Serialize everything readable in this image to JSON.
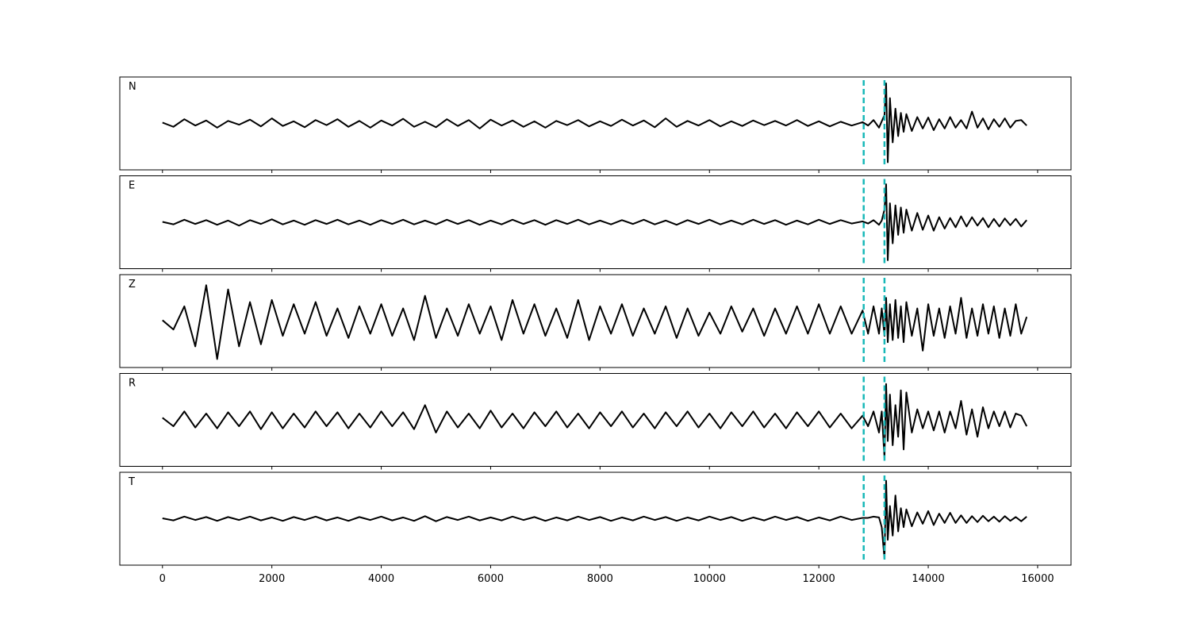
{
  "chart_data": [
    {
      "type": "line",
      "label": "N",
      "color": "#000000",
      "vline_color": "#17b8b8",
      "vlines": [
        12820,
        13200
      ],
      "xlim": [
        -780,
        16610
      ],
      "ylim": [
        -1.1,
        1.1
      ],
      "xticks": [
        0,
        2000,
        4000,
        6000,
        8000,
        10000,
        12000,
        14000,
        16000
      ],
      "x": [
        0,
        200,
        400,
        600,
        800,
        1000,
        1200,
        1400,
        1600,
        1800,
        2000,
        2200,
        2400,
        2600,
        2800,
        3000,
        3200,
        3400,
        3600,
        3800,
        4000,
        4200,
        4400,
        4600,
        4800,
        5000,
        5200,
        5400,
        5600,
        5800,
        6000,
        6200,
        6400,
        6600,
        6800,
        7000,
        7200,
        7400,
        7600,
        7800,
        8000,
        8200,
        8400,
        8600,
        8800,
        9000,
        9200,
        9400,
        9600,
        9800,
        10000,
        10200,
        10400,
        10600,
        10800,
        11000,
        11200,
        11400,
        11600,
        11800,
        12000,
        12200,
        12400,
        12600,
        12800,
        12900,
        13000,
        13100,
        13150,
        13200,
        13230,
        13260,
        13300,
        13350,
        13400,
        13450,
        13500,
        13550,
        13600,
        13700,
        13800,
        13900,
        14000,
        14100,
        14200,
        14300,
        14400,
        14500,
        14600,
        14700,
        14800,
        14900,
        15000,
        15100,
        15200,
        15300,
        15400,
        15500,
        15600,
        15700,
        15800
      ],
      "values": [
        0.02,
        -0.08,
        0.1,
        -0.05,
        0.07,
        -0.1,
        0.06,
        -0.03,
        0.09,
        -0.07,
        0.12,
        -0.06,
        0.05,
        -0.09,
        0.08,
        -0.04,
        0.1,
        -0.08,
        0.06,
        -0.1,
        0.07,
        -0.05,
        0.11,
        -0.08,
        0.04,
        -0.09,
        0.1,
        -0.06,
        0.08,
        -0.12,
        0.09,
        -0.05,
        0.07,
        -0.08,
        0.05,
        -0.1,
        0.06,
        -0.04,
        0.08,
        -0.07,
        0.05,
        -0.06,
        0.09,
        -0.05,
        0.07,
        -0.09,
        0.12,
        -0.08,
        0.06,
        -0.05,
        0.08,
        -0.07,
        0.05,
        -0.06,
        0.07,
        -0.04,
        0.06,
        -0.05,
        0.08,
        -0.06,
        0.05,
        -0.07,
        0.04,
        -0.05,
        0.03,
        -0.05,
        0.08,
        -0.1,
        0.05,
        0.2,
        0.95,
        -0.92,
        0.6,
        -0.45,
        0.35,
        -0.3,
        0.25,
        -0.2,
        0.22,
        -0.18,
        0.15,
        -0.12,
        0.14,
        -0.16,
        0.1,
        -0.12,
        0.15,
        -0.1,
        0.08,
        -0.12,
        0.28,
        -0.1,
        0.12,
        -0.14,
        0.1,
        -0.08,
        0.12,
        -0.1,
        0.06,
        0.08,
        -0.05
      ]
    },
    {
      "type": "line",
      "label": "E",
      "color": "#000000",
      "vline_color": "#17b8b8",
      "vlines": [
        12820,
        13200
      ],
      "xlim": [
        -780,
        16610
      ],
      "ylim": [
        -1.1,
        1.1
      ],
      "xticks": [
        0,
        2000,
        4000,
        6000,
        8000,
        10000,
        12000,
        14000,
        16000
      ],
      "x": [
        0,
        200,
        400,
        600,
        800,
        1000,
        1200,
        1400,
        1600,
        1800,
        2000,
        2200,
        2400,
        2600,
        2800,
        3000,
        3200,
        3400,
        3600,
        3800,
        4000,
        4200,
        4400,
        4600,
        4800,
        5000,
        5200,
        5400,
        5600,
        5800,
        6000,
        6200,
        6400,
        6600,
        6800,
        7000,
        7200,
        7400,
        7600,
        7800,
        8000,
        8200,
        8400,
        8600,
        8800,
        9000,
        9200,
        9400,
        9600,
        9800,
        10000,
        10200,
        10400,
        10600,
        10800,
        11000,
        11200,
        11400,
        11600,
        11800,
        12000,
        12200,
        12400,
        12600,
        12800,
        12900,
        13000,
        13100,
        13150,
        13200,
        13230,
        13260,
        13300,
        13350,
        13400,
        13450,
        13500,
        13550,
        13600,
        13700,
        13800,
        13900,
        14000,
        14100,
        14200,
        14300,
        14400,
        14500,
        14600,
        14700,
        14800,
        14900,
        15000,
        15100,
        15200,
        15300,
        15400,
        15500,
        15600,
        15700,
        15800
      ],
      "values": [
        0.01,
        -0.05,
        0.06,
        -0.04,
        0.05,
        -0.06,
        0.04,
        -0.08,
        0.05,
        -0.04,
        0.07,
        -0.05,
        0.04,
        -0.06,
        0.05,
        -0.04,
        0.06,
        -0.05,
        0.04,
        -0.06,
        0.05,
        -0.04,
        0.06,
        -0.05,
        0.04,
        -0.05,
        0.06,
        -0.04,
        0.05,
        -0.06,
        0.04,
        -0.05,
        0.06,
        -0.04,
        0.05,
        -0.06,
        0.05,
        -0.04,
        0.06,
        -0.05,
        0.04,
        -0.05,
        0.05,
        -0.04,
        0.06,
        -0.05,
        0.04,
        -0.06,
        0.05,
        -0.04,
        0.06,
        -0.05,
        0.04,
        -0.05,
        0.06,
        -0.04,
        0.05,
        -0.06,
        0.04,
        -0.05,
        0.06,
        -0.04,
        0.05,
        -0.03,
        0.02,
        -0.03,
        0.05,
        -0.06,
        0.04,
        0.3,
        0.9,
        -0.9,
        0.45,
        -0.5,
        0.4,
        -0.3,
        0.35,
        -0.25,
        0.3,
        -0.2,
        0.22,
        -0.18,
        0.16,
        -0.2,
        0.12,
        -0.15,
        0.1,
        -0.12,
        0.14,
        -0.1,
        0.12,
        -0.08,
        0.1,
        -0.12,
        0.08,
        -0.1,
        0.09,
        -0.07,
        0.08,
        -0.1,
        0.05
      ]
    },
    {
      "type": "line",
      "label": "Z",
      "color": "#000000",
      "vline_color": "#17b8b8",
      "vlines": [
        12820,
        13200
      ],
      "xlim": [
        -780,
        16610
      ],
      "ylim": [
        -1.1,
        1.1
      ],
      "xticks": [
        0,
        2000,
        4000,
        6000,
        8000,
        10000,
        12000,
        14000,
        16000
      ],
      "x": [
        0,
        200,
        400,
        600,
        800,
        1000,
        1200,
        1400,
        1600,
        1800,
        2000,
        2200,
        2400,
        2600,
        2800,
        3000,
        3200,
        3400,
        3600,
        3800,
        4000,
        4200,
        4400,
        4600,
        4800,
        5000,
        5200,
        5400,
        5600,
        5800,
        6000,
        6200,
        6400,
        6600,
        6800,
        7000,
        7200,
        7400,
        7600,
        7800,
        8000,
        8200,
        8400,
        8600,
        8800,
        9000,
        9200,
        9400,
        9600,
        9800,
        10000,
        10200,
        10400,
        10600,
        10800,
        11000,
        11200,
        11400,
        11600,
        11800,
        12000,
        12200,
        12400,
        12600,
        12800,
        12900,
        13000,
        13100,
        13150,
        13200,
        13230,
        13260,
        13300,
        13350,
        13400,
        13450,
        13500,
        13550,
        13600,
        13700,
        13800,
        13900,
        14000,
        14100,
        14200,
        14300,
        14400,
        14500,
        14600,
        14700,
        14800,
        14900,
        15000,
        15100,
        15200,
        15300,
        15400,
        15500,
        15600,
        15700,
        15800
      ],
      "values": [
        0.02,
        -0.2,
        0.35,
        -0.6,
        0.85,
        -0.9,
        0.75,
        -0.6,
        0.45,
        -0.55,
        0.5,
        -0.35,
        0.4,
        -0.3,
        0.45,
        -0.35,
        0.3,
        -0.4,
        0.35,
        -0.3,
        0.4,
        -0.35,
        0.3,
        -0.45,
        0.6,
        -0.4,
        0.3,
        -0.35,
        0.4,
        -0.3,
        0.35,
        -0.45,
        0.5,
        -0.3,
        0.4,
        -0.35,
        0.3,
        -0.4,
        0.5,
        -0.45,
        0.35,
        -0.3,
        0.4,
        -0.35,
        0.3,
        -0.3,
        0.35,
        -0.4,
        0.3,
        -0.35,
        0.2,
        -0.3,
        0.35,
        -0.25,
        0.3,
        -0.35,
        0.3,
        -0.3,
        0.35,
        -0.3,
        0.4,
        -0.3,
        0.35,
        -0.3,
        0.25,
        -0.3,
        0.35,
        -0.3,
        0.3,
        -0.35,
        0.55,
        -0.5,
        0.4,
        -0.45,
        0.5,
        -0.4,
        0.35,
        -0.5,
        0.45,
        -0.35,
        0.3,
        -0.7,
        0.4,
        -0.35,
        0.3,
        -0.4,
        0.35,
        -0.3,
        0.55,
        -0.4,
        0.3,
        -0.35,
        0.4,
        -0.3,
        0.35,
        -0.4,
        0.3,
        -0.35,
        0.4,
        -0.3,
        0.1
      ]
    },
    {
      "type": "line",
      "label": "R",
      "color": "#000000",
      "vline_color": "#17b8b8",
      "vlines": [
        12820,
        13200
      ],
      "xlim": [
        -780,
        16610
      ],
      "ylim": [
        -1.1,
        1.1
      ],
      "xticks": [
        0,
        2000,
        4000,
        6000,
        8000,
        10000,
        12000,
        14000,
        16000
      ],
      "x": [
        0,
        200,
        400,
        600,
        800,
        1000,
        1200,
        1400,
        1600,
        1800,
        2000,
        2200,
        2400,
        2600,
        2800,
        3000,
        3200,
        3400,
        3600,
        3800,
        4000,
        4200,
        4400,
        4600,
        4800,
        5000,
        5200,
        5400,
        5600,
        5800,
        6000,
        6200,
        6400,
        6600,
        6800,
        7000,
        7200,
        7400,
        7600,
        7800,
        8000,
        8200,
        8400,
        8600,
        8800,
        9000,
        9200,
        9400,
        9600,
        9800,
        10000,
        10200,
        10400,
        10600,
        10800,
        11000,
        11200,
        11400,
        11600,
        11800,
        12000,
        12200,
        12400,
        12600,
        12800,
        12900,
        13000,
        13100,
        13150,
        13200,
        13230,
        13260,
        13300,
        13350,
        13400,
        13450,
        13500,
        13550,
        13600,
        13700,
        13800,
        13900,
        14000,
        14100,
        14200,
        14300,
        14400,
        14500,
        14600,
        14700,
        14800,
        14900,
        15000,
        15100,
        15200,
        15300,
        15400,
        15500,
        15600,
        15700,
        15800
      ],
      "values": [
        0.05,
        -0.15,
        0.2,
        -0.18,
        0.15,
        -0.2,
        0.18,
        -0.15,
        0.2,
        -0.22,
        0.18,
        -0.2,
        0.15,
        -0.18,
        0.2,
        -0.15,
        0.18,
        -0.2,
        0.15,
        -0.18,
        0.2,
        -0.15,
        0.18,
        -0.22,
        0.35,
        -0.3,
        0.2,
        -0.18,
        0.15,
        -0.2,
        0.22,
        -0.18,
        0.15,
        -0.2,
        0.18,
        -0.15,
        0.2,
        -0.18,
        0.15,
        -0.2,
        0.18,
        -0.15,
        0.2,
        -0.18,
        0.15,
        -0.2,
        0.18,
        -0.15,
        0.2,
        -0.18,
        0.15,
        -0.2,
        0.18,
        -0.15,
        0.2,
        -0.18,
        0.15,
        -0.2,
        0.18,
        -0.15,
        0.2,
        -0.18,
        0.15,
        -0.2,
        0.1,
        -0.15,
        0.2,
        -0.3,
        0.2,
        -0.9,
        0.85,
        -0.5,
        0.6,
        -0.6,
        0.35,
        -0.4,
        0.7,
        -0.7,
        0.65,
        -0.3,
        0.25,
        -0.2,
        0.2,
        -0.25,
        0.2,
        -0.3,
        0.2,
        -0.2,
        0.45,
        -0.35,
        0.25,
        -0.4,
        0.3,
        -0.2,
        0.2,
        -0.15,
        0.2,
        -0.18,
        0.15,
        0.1,
        -0.15
      ]
    },
    {
      "type": "line",
      "label": "T",
      "color": "#000000",
      "vline_color": "#17b8b8",
      "vlines": [
        12820,
        13200
      ],
      "xlim": [
        -780,
        16610
      ],
      "ylim": [
        -1.1,
        1.1
      ],
      "xticks": [
        0,
        2000,
        4000,
        6000,
        8000,
        10000,
        12000,
        14000,
        16000
      ],
      "x": [
        0,
        200,
        400,
        600,
        800,
        1000,
        1200,
        1400,
        1600,
        1800,
        2000,
        2200,
        2400,
        2600,
        2800,
        3000,
        3200,
        3400,
        3600,
        3800,
        4000,
        4200,
        4400,
        4600,
        4800,
        5000,
        5200,
        5400,
        5600,
        5800,
        6000,
        6200,
        6400,
        6600,
        6800,
        7000,
        7200,
        7400,
        7600,
        7800,
        8000,
        8200,
        8400,
        8600,
        8800,
        9000,
        9200,
        9400,
        9600,
        9800,
        10000,
        10200,
        10400,
        10600,
        10800,
        11000,
        11200,
        11400,
        11600,
        11800,
        12000,
        12200,
        12400,
        12600,
        12800,
        12900,
        13000,
        13100,
        13150,
        13200,
        13230,
        13260,
        13300,
        13350,
        13400,
        13450,
        13500,
        13550,
        13600,
        13700,
        13800,
        13900,
        14000,
        14100,
        14200,
        14300,
        14400,
        14500,
        14600,
        14700,
        14800,
        14900,
        15000,
        15100,
        15200,
        15300,
        15400,
        15500,
        15600,
        15700,
        15800
      ],
      "values": [
        0.01,
        -0.04,
        0.05,
        -0.03,
        0.04,
        -0.05,
        0.04,
        -0.03,
        0.05,
        -0.04,
        0.03,
        -0.05,
        0.04,
        -0.03,
        0.05,
        -0.04,
        0.03,
        -0.05,
        0.04,
        -0.03,
        0.05,
        -0.04,
        0.03,
        -0.05,
        0.06,
        -0.06,
        0.04,
        -0.03,
        0.05,
        -0.04,
        0.03,
        -0.04,
        0.05,
        -0.03,
        0.04,
        -0.05,
        0.03,
        -0.04,
        0.05,
        -0.03,
        0.04,
        -0.05,
        0.03,
        -0.04,
        0.05,
        -0.03,
        0.04,
        -0.05,
        0.03,
        -0.04,
        0.05,
        -0.03,
        0.04,
        -0.05,
        0.03,
        -0.04,
        0.05,
        -0.03,
        0.04,
        -0.05,
        0.03,
        -0.04,
        0.05,
        -0.03,
        0.02,
        0.02,
        0.05,
        0.03,
        -0.2,
        -0.95,
        0.9,
        -0.5,
        0.3,
        -0.4,
        0.55,
        -0.3,
        0.25,
        -0.2,
        0.22,
        -0.18,
        0.15,
        -0.12,
        0.18,
        -0.15,
        0.12,
        -0.1,
        0.14,
        -0.1,
        0.08,
        -0.1,
        0.06,
        -0.08,
        0.07,
        -0.06,
        0.05,
        -0.07,
        0.06,
        -0.05,
        0.04,
        -0.06,
        0.05
      ]
    }
  ]
}
